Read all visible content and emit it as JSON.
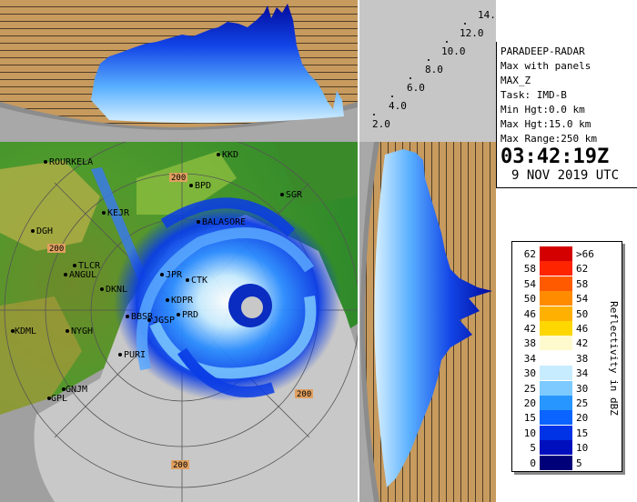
{
  "info": {
    "station": "PARADEEP-RADAR",
    "product": "Max with panels",
    "field": "MAX_Z",
    "task": "Task: IMD-B",
    "min_hgt": "Min Hgt:0.0 km",
    "max_hgt": "Max Hgt:15.0 km",
    "max_range": "Max Range:250 km",
    "time": "03:42:19Z",
    "date": "9 NOV 2019 UTC"
  },
  "height_scale": [
    "2.0",
    "4.0",
    "6.0",
    "8.0",
    "10.0",
    "12.0",
    "14.0"
  ],
  "legend": {
    "title": "Reflectivity in dBZ",
    "bins": [
      {
        "lo": "62",
        "hi": ">66",
        "color": "#d40000"
      },
      {
        "lo": "58",
        "hi": "62",
        "color": "#ff2400"
      },
      {
        "lo": "54",
        "hi": "58",
        "color": "#ff5a00"
      },
      {
        "lo": "50",
        "hi": "54",
        "color": "#ff8c00"
      },
      {
        "lo": "46",
        "hi": "50",
        "color": "#ffb000"
      },
      {
        "lo": "42",
        "hi": "46",
        "color": "#ffd700"
      },
      {
        "lo": "38",
        "hi": "42",
        "color": "#fffacd"
      },
      {
        "lo": "34",
        "hi": "38",
        "color": "#ffffff"
      },
      {
        "lo": "30",
        "hi": "34",
        "color": "#c8ecff"
      },
      {
        "lo": "25",
        "hi": "30",
        "color": "#7ccaff"
      },
      {
        "lo": "20",
        "hi": "25",
        "color": "#2896ff"
      },
      {
        "lo": "15",
        "hi": "20",
        "color": "#0a64ff"
      },
      {
        "lo": "10",
        "hi": "15",
        "color": "#0032e6"
      },
      {
        "lo": "5",
        "hi": "10",
        "color": "#000fbe"
      },
      {
        "lo": "0",
        "hi": "5",
        "color": "#000078"
      }
    ]
  },
  "map": {
    "range_label": "200",
    "places": [
      {
        "name": "ROURKELA"
      },
      {
        "name": "KKD"
      },
      {
        "name": "BPD"
      },
      {
        "name": "KEJR"
      },
      {
        "name": "SGR"
      },
      {
        "name": "BALASORE"
      },
      {
        "name": "DGH"
      },
      {
        "name": "TLCR"
      },
      {
        "name": "ANGUL"
      },
      {
        "name": "DKNL"
      },
      {
        "name": "JPR"
      },
      {
        "name": "CTK"
      },
      {
        "name": "KDPR"
      },
      {
        "name": "PRD"
      },
      {
        "name": "BBSR"
      },
      {
        "name": "JGSP"
      },
      {
        "name": "KDML"
      },
      {
        "name": "NYGH"
      },
      {
        "name": "PURI"
      },
      {
        "name": "GNJM"
      },
      {
        "name": "GPL"
      }
    ]
  },
  "colors": {
    "land_green": "#3c9a2c",
    "land_light": "#8bc63c",
    "sea_gray": "#c8c8c8",
    "outer_gray": "#a0a0a0",
    "panel_tan": "#c79a5e",
    "echo_blue": "#1a4fe0"
  }
}
